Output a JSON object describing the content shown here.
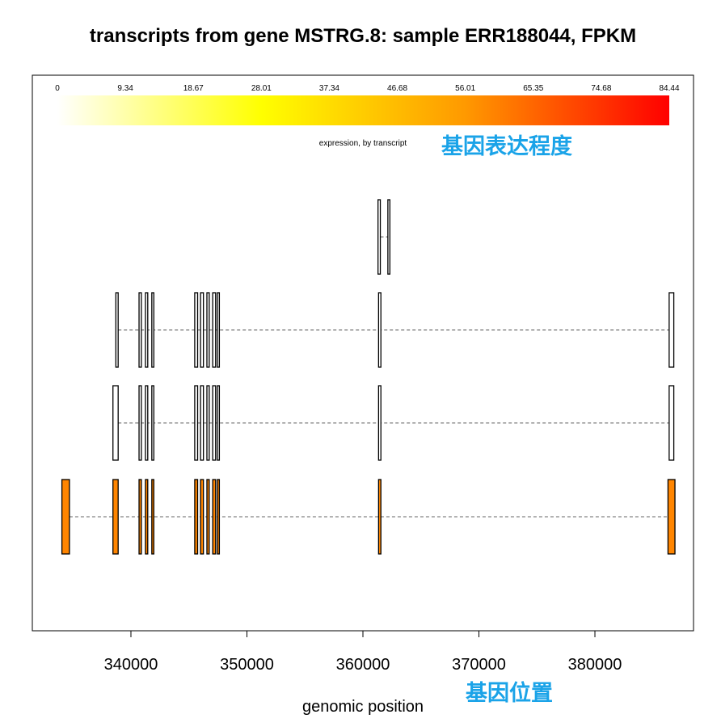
{
  "chart_data": {
    "type": "gene-structure",
    "title": "transcripts from gene MSTRG.8: sample ERR188044, FPKM",
    "xlabel": "genomic position",
    "ylabel": "",
    "xlim": [
      331500,
      388500
    ],
    "x_ticks": [
      340000,
      350000,
      360000,
      370000,
      380000
    ],
    "color_scale": {
      "label": "expression, by transcript",
      "min": 0,
      "max": 84.44,
      "tick_labels": [
        "0",
        "9.34",
        "18.67",
        "28.01",
        "37.34",
        "46.68",
        "56.01",
        "65.35",
        "74.68",
        "84.44"
      ],
      "colors": [
        "#ffffff",
        "#ffff00",
        "#ff9900",
        "#ff0000"
      ]
    },
    "transcripts": [
      {
        "expression": 0,
        "exons": [
          [
            361300,
            361500
          ],
          [
            362150,
            362250
          ]
        ]
      },
      {
        "expression": 0,
        "exons": [
          [
            338700,
            338900
          ],
          [
            340700,
            340900
          ],
          [
            341250,
            341450
          ],
          [
            341800,
            341950
          ],
          [
            345500,
            345750
          ],
          [
            346000,
            346250
          ],
          [
            346550,
            346750
          ],
          [
            347050,
            347300
          ],
          [
            347450,
            347600
          ],
          [
            361350,
            361550
          ],
          [
            386400,
            386800
          ]
        ]
      },
      {
        "expression": 0,
        "exons": [
          [
            338450,
            338900
          ],
          [
            340700,
            340900
          ],
          [
            341250,
            341450
          ],
          [
            341800,
            341950
          ],
          [
            345500,
            345750
          ],
          [
            346000,
            346250
          ],
          [
            346550,
            346750
          ],
          [
            347050,
            347300
          ],
          [
            347450,
            347600
          ],
          [
            361350,
            361550
          ],
          [
            386400,
            386800
          ]
        ]
      },
      {
        "expression": 60,
        "exons": [
          [
            334050,
            334700
          ],
          [
            338450,
            338900
          ],
          [
            340700,
            340900
          ],
          [
            341250,
            341450
          ],
          [
            341800,
            341950
          ],
          [
            345500,
            345750
          ],
          [
            346000,
            346250
          ],
          [
            346550,
            346750
          ],
          [
            347050,
            347300
          ],
          [
            347450,
            347600
          ],
          [
            361350,
            361550
          ],
          [
            386300,
            386900
          ]
        ]
      }
    ]
  },
  "annotations": {
    "expression_label": "基因表达程度",
    "position_label": "基因位置"
  }
}
